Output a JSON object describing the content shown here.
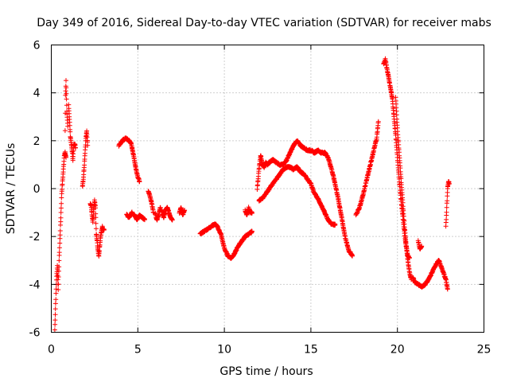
{
  "chart_data": {
    "type": "scatter",
    "title": "Day 349 of 2016, Sidereal Day-to-day VTEC variation (SDTVAR) for receiver mabs",
    "xlabel": "GPS time / hours",
    "ylabel": "SDTVAR / TECUs",
    "xlim": [
      0,
      25
    ],
    "ylim": [
      -6,
      6
    ],
    "xticks": [
      0,
      5,
      10,
      15,
      20,
      25
    ],
    "yticks": [
      -6,
      -4,
      -2,
      0,
      2,
      4,
      6
    ],
    "grid": true,
    "marker": "+",
    "series": [
      {
        "name": "SDTVAR",
        "color": "#ff0000",
        "segments": [
          [
            [
              0.2,
              -5.9
            ],
            [
              0.25,
              -4.8
            ],
            [
              0.3,
              -3.8
            ],
            [
              0.35,
              -3.2
            ],
            [
              0.4,
              -4.2
            ],
            [
              0.45,
              -3.0
            ],
            [
              0.5,
              -2.1
            ],
            [
              0.55,
              -1.2
            ],
            [
              0.6,
              -0.2
            ],
            [
              0.65,
              0.3
            ],
            [
              0.7,
              0.8
            ],
            [
              0.75,
              1.4
            ],
            [
              0.8,
              1.5
            ],
            [
              0.85,
              1.3
            ]
          ],
          [
            [
              0.8,
              2.4
            ],
            [
              0.82,
              3.9
            ],
            [
              0.85,
              4.5
            ],
            [
              0.9,
              3.2
            ],
            [
              0.95,
              2.6
            ]
          ],
          [
            [
              1.0,
              3.5
            ],
            [
              1.05,
              2.9
            ],
            [
              1.1,
              2.2
            ],
            [
              1.15,
              1.9
            ],
            [
              1.2,
              1.6
            ],
            [
              1.25,
              1.2
            ],
            [
              1.3,
              1.8
            ],
            [
              1.35,
              1.9
            ],
            [
              1.4,
              1.7
            ]
          ],
          [
            [
              1.8,
              0.1
            ],
            [
              1.85,
              0.4
            ],
            [
              1.9,
              0.9
            ],
            [
              1.95,
              1.5
            ],
            [
              2.0,
              2.1
            ],
            [
              2.05,
              2.4
            ],
            [
              2.1,
              1.8
            ]
          ],
          [
            [
              2.25,
              -0.6
            ],
            [
              2.3,
              -0.7
            ],
            [
              2.35,
              -1.1
            ],
            [
              2.4,
              -1.4
            ],
            [
              2.45,
              -0.9
            ],
            [
              2.5,
              -0.5
            ],
            [
              2.55,
              -0.8
            ],
            [
              2.6,
              -1.9
            ],
            [
              2.65,
              -2.2
            ],
            [
              2.7,
              -2.6
            ],
            [
              2.75,
              -2.8
            ],
            [
              2.8,
              -2.4
            ],
            [
              2.85,
              -2.0
            ],
            [
              2.9,
              -1.8
            ],
            [
              2.95,
              -1.6
            ],
            [
              3.0,
              -1.7
            ],
            [
              3.05,
              -1.7
            ]
          ],
          [
            [
              3.9,
              1.8
            ],
            [
              4.0,
              1.9
            ],
            [
              4.1,
              2.0
            ],
            [
              4.2,
              2.05
            ],
            [
              4.3,
              2.1
            ],
            [
              4.4,
              2.05
            ],
            [
              4.5,
              2.0
            ],
            [
              4.6,
              1.9
            ],
            [
              4.7,
              1.6
            ],
            [
              4.8,
              1.2
            ],
            [
              4.9,
              0.8
            ],
            [
              5.0,
              0.5
            ],
            [
              5.1,
              0.3
            ]
          ],
          [
            [
              4.35,
              -1.1
            ],
            [
              4.5,
              -1.2
            ],
            [
              4.65,
              -1.0
            ],
            [
              4.8,
              -1.1
            ],
            [
              4.95,
              -1.3
            ],
            [
              5.1,
              -1.1
            ],
            [
              5.25,
              -1.2
            ],
            [
              5.4,
              -1.3
            ]
          ],
          [
            [
              5.6,
              -0.1
            ],
            [
              5.7,
              -0.3
            ],
            [
              5.8,
              -0.6
            ],
            [
              5.9,
              -1.0
            ]
          ],
          [
            [
              6.0,
              -1.0
            ],
            [
              6.1,
              -1.3
            ],
            [
              6.2,
              -1.1
            ],
            [
              6.3,
              -0.8
            ],
            [
              6.4,
              -1.0
            ],
            [
              6.5,
              -1.2
            ],
            [
              6.6,
              -0.9
            ],
            [
              6.7,
              -0.8
            ],
            [
              6.8,
              -1.0
            ],
            [
              6.9,
              -1.2
            ],
            [
              7.0,
              -1.3
            ]
          ],
          [
            [
              7.4,
              -1.0
            ],
            [
              7.5,
              -0.8
            ],
            [
              7.6,
              -1.1
            ],
            [
              7.7,
              -0.9
            ]
          ],
          [
            [
              8.6,
              -1.9
            ],
            [
              8.8,
              -1.8
            ],
            [
              9.0,
              -1.7
            ],
            [
              9.2,
              -1.6
            ],
            [
              9.4,
              -1.5
            ],
            [
              9.5,
              -1.5
            ],
            [
              9.6,
              -1.6
            ],
            [
              9.8,
              -1.9
            ],
            [
              9.9,
              -2.2
            ],
            [
              10.0,
              -2.5
            ],
            [
              10.2,
              -2.8
            ],
            [
              10.4,
              -2.9
            ],
            [
              10.6,
              -2.7
            ],
            [
              10.8,
              -2.4
            ],
            [
              11.0,
              -2.2
            ],
            [
              11.2,
              -2.0
            ],
            [
              11.4,
              -1.9
            ],
            [
              11.6,
              -1.8
            ]
          ],
          [
            [
              11.2,
              -0.9
            ],
            [
              11.3,
              -1.1
            ],
            [
              11.4,
              -0.8
            ],
            [
              11.5,
              -1.0
            ],
            [
              11.6,
              -1.0
            ]
          ],
          [
            [
              11.9,
              0.0
            ],
            [
              12.0,
              0.8
            ],
            [
              12.1,
              1.4
            ],
            [
              12.2,
              1.0
            ],
            [
              12.3,
              0.9
            ],
            [
              12.4,
              1.1
            ],
            [
              12.5,
              1.0
            ],
            [
              12.6,
              1.1
            ],
            [
              12.8,
              1.2
            ],
            [
              13.0,
              1.1
            ],
            [
              13.2,
              1.0
            ],
            [
              13.4,
              1.0
            ],
            [
              13.6,
              1.2
            ],
            [
              13.8,
              1.5
            ],
            [
              14.0,
              1.8
            ],
            [
              14.2,
              2.0
            ],
            [
              14.4,
              1.8
            ],
            [
              14.6,
              1.7
            ],
            [
              14.8,
              1.6
            ],
            [
              15.0,
              1.6
            ],
            [
              15.2,
              1.5
            ],
            [
              15.4,
              1.6
            ],
            [
              15.6,
              1.5
            ],
            [
              15.8,
              1.5
            ],
            [
              16.0,
              1.3
            ],
            [
              16.2,
              0.8
            ],
            [
              16.4,
              0.2
            ],
            [
              16.6,
              -0.5
            ],
            [
              16.8,
              -1.3
            ],
            [
              17.0,
              -2.1
            ],
            [
              17.2,
              -2.6
            ],
            [
              17.4,
              -2.8
            ]
          ],
          [
            [
              12.0,
              -0.5
            ],
            [
              12.2,
              -0.4
            ],
            [
              12.4,
              -0.2
            ],
            [
              12.6,
              0.0
            ],
            [
              12.8,
              0.2
            ],
            [
              13.0,
              0.4
            ],
            [
              13.2,
              0.6
            ],
            [
              13.4,
              0.8
            ],
            [
              13.6,
              0.9
            ],
            [
              13.8,
              0.9
            ],
            [
              14.0,
              0.8
            ],
            [
              14.2,
              0.9
            ],
            [
              14.4,
              0.7
            ],
            [
              14.6,
              0.6
            ],
            [
              14.8,
              0.4
            ],
            [
              15.0,
              0.2
            ],
            [
              15.2,
              -0.2
            ],
            [
              15.4,
              -0.4
            ],
            [
              15.6,
              -0.7
            ],
            [
              15.8,
              -1.0
            ],
            [
              16.0,
              -1.3
            ],
            [
              16.2,
              -1.5
            ],
            [
              16.4,
              -1.5
            ]
          ],
          [
            [
              17.6,
              -1.1
            ],
            [
              17.8,
              -0.8
            ],
            [
              18.0,
              -0.3
            ],
            [
              18.2,
              0.3
            ],
            [
              18.4,
              0.9
            ],
            [
              18.6,
              1.5
            ],
            [
              18.8,
              2.1
            ],
            [
              18.9,
              2.8
            ]
          ],
          [
            [
              19.2,
              5.2
            ],
            [
              19.3,
              5.4
            ],
            [
              19.4,
              5.0
            ],
            [
              19.5,
              4.6
            ],
            [
              19.6,
              4.2
            ],
            [
              19.7,
              3.8
            ],
            [
              19.8,
              3.0
            ],
            [
              19.9,
              2.2
            ],
            [
              20.0,
              1.3
            ],
            [
              20.1,
              0.4
            ],
            [
              20.2,
              -0.4
            ],
            [
              20.3,
              -1.1
            ],
            [
              20.4,
              -1.8
            ],
            [
              20.5,
              -2.4
            ],
            [
              20.6,
              -2.8
            ],
            [
              20.7,
              -2.9
            ]
          ],
          [
            [
              19.9,
              3.8
            ],
            [
              20.0,
              2.5
            ],
            [
              20.1,
              1.5
            ],
            [
              20.2,
              0.5
            ],
            [
              20.3,
              -0.5
            ],
            [
              20.4,
              -1.5
            ],
            [
              20.5,
              -2.3
            ],
            [
              20.6,
              -3.0
            ],
            [
              20.7,
              -3.5
            ],
            [
              20.8,
              -3.8
            ]
          ],
          [
            [
              20.9,
              -3.7
            ],
            [
              21.0,
              -3.9
            ],
            [
              21.2,
              -4.0
            ],
            [
              21.4,
              -4.1
            ],
            [
              21.6,
              -4.0
            ],
            [
              21.8,
              -3.8
            ],
            [
              22.0,
              -3.5
            ],
            [
              22.2,
              -3.2
            ],
            [
              22.4,
              -3.0
            ],
            [
              22.6,
              -3.4
            ],
            [
              22.8,
              -3.8
            ],
            [
              22.9,
              -4.2
            ]
          ],
          [
            [
              21.2,
              -2.2
            ],
            [
              21.3,
              -2.5
            ],
            [
              21.4,
              -2.4
            ]
          ],
          [
            [
              22.8,
              -1.6
            ],
            [
              22.85,
              -0.8
            ],
            [
              22.9,
              0.0
            ],
            [
              22.95,
              0.3
            ],
            [
              23.0,
              0.2
            ]
          ]
        ]
      }
    ]
  }
}
